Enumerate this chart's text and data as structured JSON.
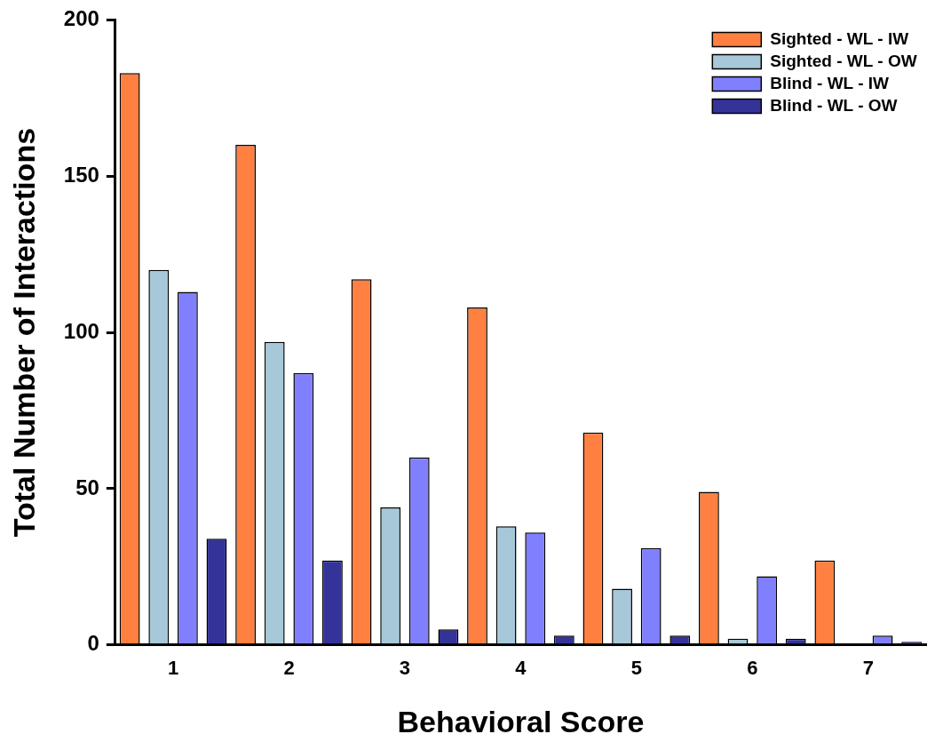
{
  "chart_data": {
    "type": "bar",
    "xlabel": "Behavioral Score",
    "ylabel": "Total Number of Interactions",
    "categories": [
      "1",
      "2",
      "3",
      "4",
      "5",
      "6",
      "7"
    ],
    "series": [
      {
        "name": "Sighted - WL - IW",
        "color": "#ff8040",
        "values": [
          183,
          160,
          117,
          108,
          68,
          49,
          27
        ]
      },
      {
        "name": "Sighted - WL - OW",
        "color": "#a6c8d8",
        "values": [
          120,
          97,
          44,
          38,
          18,
          2,
          null
        ]
      },
      {
        "name": "Blind - WL - IW",
        "color": "#8080ff",
        "values": [
          113,
          87,
          60,
          36,
          31,
          22,
          3
        ]
      },
      {
        "name": "Blind - WL - OW",
        "color": "#333399",
        "values": [
          34,
          27,
          5,
          3,
          3,
          2,
          1
        ]
      }
    ],
    "ylim": [
      0,
      200
    ],
    "yticks": [
      0,
      50,
      100,
      150,
      200
    ],
    "grid": false,
    "legend": "top right"
  }
}
